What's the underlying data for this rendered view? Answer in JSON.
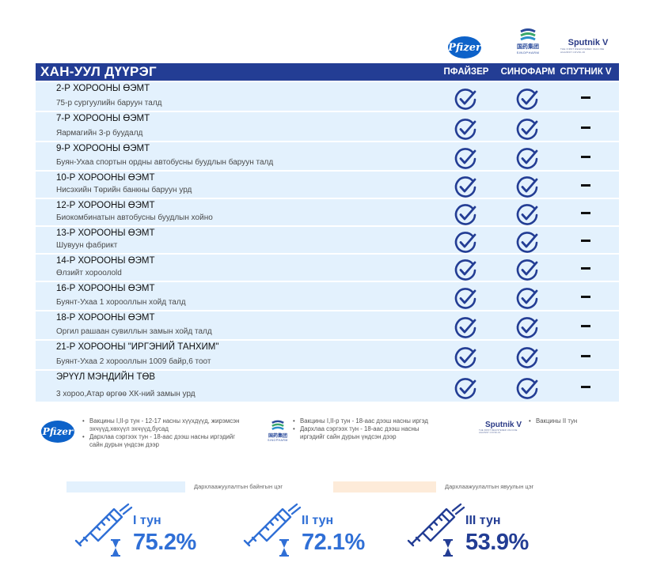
{
  "logos": {
    "pfizer": "Pfizer",
    "sinopharm_cn": "国药集团",
    "sinopharm_en": "SINOPHARM",
    "sputnik_name": "Sputnik V",
    "sputnik_tagline": "THE FIRST REGISTERED VACCINE AGAINST COVID-19"
  },
  "header": {
    "title": "ХАН-УУЛ ДҮҮРЭГ",
    "columns": [
      "ПФАЙЗЕР",
      "СИНОФАРМ",
      "СПУТНИК V"
    ]
  },
  "rows": [
    {
      "name": "2-Р ХОРООНЫ ӨЭМТ",
      "address": "75-р сургуулийн баруун талд",
      "pfizer": "available",
      "sinopharm": "available",
      "sputnik": "—"
    },
    {
      "name": "7-Р ХОРООНЫ ӨЭМТ",
      "address": "Яармагийн 3-р буудалд",
      "pfizer": "available",
      "sinopharm": "available",
      "sputnik": "—"
    },
    {
      "name": "9-Р ХОРООНЫ ӨЭМТ",
      "address": "Буян-Ухаа спортын ордны автобусны буудлын баруун талд",
      "pfizer": "available",
      "sinopharm": "available",
      "sputnik": "—"
    },
    {
      "name": "10-Р ХОРООНЫ ӨЭМТ",
      "address": "Нисэхийн Төрийн банкны баруун урд",
      "pfizer": "available",
      "sinopharm": "available",
      "sputnik": "—"
    },
    {
      "name": "12-Р ХОРООНЫ ӨЭМТ",
      "address": "Биокомбинатын автобусны буудлын хойно",
      "pfizer": "available",
      "sinopharm": "available",
      "sputnik": "—"
    },
    {
      "name": "13-Р ХОРООНЫ ӨЭМТ",
      "address": "Шувуун фабрикт",
      "pfizer": "available",
      "sinopharm": "available",
      "sputnik": "—"
    },
    {
      "name": "14-Р ХОРООНЫ ӨЭМТ",
      "address": "Өлзийт хороолold",
      "pfizer": "available",
      "sinopharm": "available",
      "sputnik": "—"
    },
    {
      "name": "16-Р ХОРООНЫ ӨЭМТ",
      "address": "Буянт-Ухаа 1 хорооллын хойд талд",
      "pfizer": "available",
      "sinopharm": "available",
      "sputnik": "—"
    },
    {
      "name": "18-Р ХОРООНЫ ӨЭМТ",
      "address": "Оргил рашаан сувиллын замын хойд  талд",
      "pfizer": "available",
      "sinopharm": "available",
      "sputnik": "—"
    },
    {
      "name": "21-Р  ХОРООНЫ \"ИРГЭНИЙ ТАНХИМ\"",
      "address": "Буянт-Ухаа 2 хорооллын 1009 байр,6 тоот",
      "pfizer": "available",
      "sinopharm": "available",
      "sputnik": "—"
    },
    {
      "name": "ЭРҮҮЛ МЭНДИЙН ТӨВ",
      "address": "3 хороо,Атар өргөө ХК-ний замын урд",
      "pfizer": "available",
      "sinopharm": "available",
      "sputnik": "—"
    }
  ],
  "legend": {
    "pfizer": [
      "Вакцины I,II-р тун - 12-17 насны хүүхдүүд, жирэмсэн эхчүүд,хөхүүл эхчүүд,бусад",
      "Дархлаа сэргээх тун - 18-аас дээш насны иргэдийг сайн дурын үндсэн дээр"
    ],
    "sinopharm": [
      "Вакцины I,II-р тун - 18-аас дээш насны иргэд",
      "Дархлаа сэргээх тун - 18-аас дээш насны иргэдийг сайн дурын үндсэн дээр"
    ],
    "sputnik": [
      "Вакцины II тун"
    ],
    "fixed_label": "Дархлаажуулалтын байнгын цэг",
    "mobile_label": "Дархлаажуулалтын явуулын цэг"
  },
  "stats": [
    {
      "dose": "I тун",
      "percent": "75.2%",
      "percent_value": 75.2
    },
    {
      "dose": "II тун",
      "percent": "72.1%",
      "percent_value": 72.1
    },
    {
      "dose": "III тун",
      "percent": "53.9%",
      "percent_value": 53.9
    }
  ],
  "colors": {
    "header_bg": "#233d94",
    "row_bg": "#e3f1fd",
    "fixed_swatch": "#e3f1fd",
    "mobile_swatch": "#fdebd9",
    "stat_blue": "#2f6fd6",
    "stat_navy": "#233d94",
    "check_navy": "#233d94"
  },
  "icons": {
    "available": "check-circle-icon",
    "not_available": "dash-icon",
    "stat": "syringe-hourglass-icon"
  }
}
